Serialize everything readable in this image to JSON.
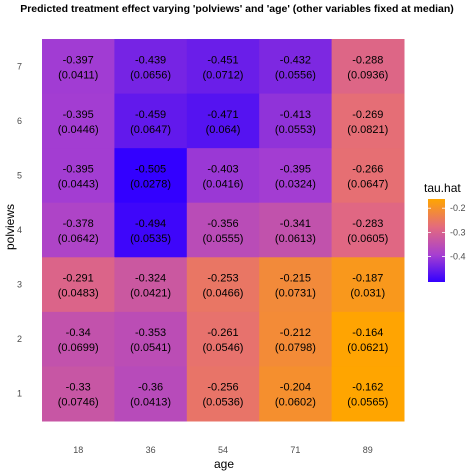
{
  "chart_data": {
    "type": "heatmap",
    "title": "Predicted treatment effect varying 'polviews' and 'age' (other variables fixed at median)",
    "xlabel": "age",
    "ylabel": "polviews",
    "x_categories": [
      "18",
      "36",
      "54",
      "71",
      "89"
    ],
    "y_categories": [
      "1",
      "2",
      "3",
      "4",
      "5",
      "6",
      "7"
    ],
    "cells": [
      {
        "x": "18",
        "y": "7",
        "value": -0.397,
        "se": "(0.0411)",
        "label": "-0.397"
      },
      {
        "x": "36",
        "y": "7",
        "value": -0.439,
        "se": "(0.0656)",
        "label": "-0.439"
      },
      {
        "x": "54",
        "y": "7",
        "value": -0.451,
        "se": "(0.0712)",
        "label": "-0.451"
      },
      {
        "x": "71",
        "y": "7",
        "value": -0.432,
        "se": "(0.0556)",
        "label": "-0.432"
      },
      {
        "x": "89",
        "y": "7",
        "value": -0.288,
        "se": "(0.0936)",
        "label": "-0.288"
      },
      {
        "x": "18",
        "y": "6",
        "value": -0.395,
        "se": "(0.0446)",
        "label": "-0.395"
      },
      {
        "x": "36",
        "y": "6",
        "value": -0.459,
        "se": "(0.0647)",
        "label": "-0.459"
      },
      {
        "x": "54",
        "y": "6",
        "value": -0.471,
        "se": "(0.064)",
        "label": "-0.471"
      },
      {
        "x": "71",
        "y": "6",
        "value": -0.413,
        "se": "(0.0553)",
        "label": "-0.413"
      },
      {
        "x": "89",
        "y": "6",
        "value": -0.269,
        "se": "(0.0821)",
        "label": "-0.269"
      },
      {
        "x": "18",
        "y": "5",
        "value": -0.395,
        "se": "(0.0443)",
        "label": "-0.395"
      },
      {
        "x": "36",
        "y": "5",
        "value": -0.505,
        "se": "(0.0278)",
        "label": "-0.505"
      },
      {
        "x": "54",
        "y": "5",
        "value": -0.403,
        "se": "(0.0416)",
        "label": "-0.403"
      },
      {
        "x": "71",
        "y": "5",
        "value": -0.395,
        "se": "(0.0324)",
        "label": "-0.395"
      },
      {
        "x": "89",
        "y": "5",
        "value": -0.266,
        "se": "(0.0647)",
        "label": "-0.266"
      },
      {
        "x": "18",
        "y": "4",
        "value": -0.378,
        "se": "(0.0642)",
        "label": "-0.378"
      },
      {
        "x": "36",
        "y": "4",
        "value": -0.494,
        "se": "(0.0535)",
        "label": "-0.494"
      },
      {
        "x": "54",
        "y": "4",
        "value": -0.356,
        "se": "(0.0555)",
        "label": "-0.356"
      },
      {
        "x": "71",
        "y": "4",
        "value": -0.341,
        "se": "(0.0613)",
        "label": "-0.341"
      },
      {
        "x": "89",
        "y": "4",
        "value": -0.283,
        "se": "(0.0605)",
        "label": "-0.283"
      },
      {
        "x": "18",
        "y": "3",
        "value": -0.291,
        "se": "(0.0483)",
        "label": "-0.291"
      },
      {
        "x": "36",
        "y": "3",
        "value": -0.324,
        "se": "(0.0421)",
        "label": "-0.324"
      },
      {
        "x": "54",
        "y": "3",
        "value": -0.253,
        "se": "(0.0466)",
        "label": "-0.253"
      },
      {
        "x": "71",
        "y": "3",
        "value": -0.215,
        "se": "(0.0731)",
        "label": "-0.215"
      },
      {
        "x": "89",
        "y": "3",
        "value": -0.187,
        "se": "(0.031)",
        "label": "-0.187"
      },
      {
        "x": "18",
        "y": "2",
        "value": -0.34,
        "se": "(0.0699)",
        "label": "-0.34"
      },
      {
        "x": "36",
        "y": "2",
        "value": -0.353,
        "se": "(0.0541)",
        "label": "-0.353"
      },
      {
        "x": "54",
        "y": "2",
        "value": -0.261,
        "se": "(0.0546)",
        "label": "-0.261"
      },
      {
        "x": "71",
        "y": "2",
        "value": -0.212,
        "se": "(0.0798)",
        "label": "-0.212"
      },
      {
        "x": "89",
        "y": "2",
        "value": -0.164,
        "se": "(0.0621)",
        "label": "-0.164"
      },
      {
        "x": "18",
        "y": "1",
        "value": -0.33,
        "se": "(0.0746)",
        "label": "-0.33"
      },
      {
        "x": "36",
        "y": "1",
        "value": -0.36,
        "se": "(0.0413)",
        "label": "-0.36"
      },
      {
        "x": "54",
        "y": "1",
        "value": -0.256,
        "se": "(0.0536)",
        "label": "-0.256"
      },
      {
        "x": "71",
        "y": "1",
        "value": -0.204,
        "se": "(0.0602)",
        "label": "-0.204"
      },
      {
        "x": "89",
        "y": "1",
        "value": -0.162,
        "se": "(0.0565)",
        "label": "-0.162"
      }
    ],
    "legend": {
      "title": "tau.hat",
      "position": "right",
      "range": [
        -0.505,
        -0.162
      ],
      "ticks": [
        -0.2,
        -0.3,
        -0.4
      ],
      "tick_labels": [
        "-0.2",
        "-0.3",
        "-0.4"
      ],
      "colors": [
        "#3300ff",
        "#a73fd0",
        "#e36a7e",
        "#ffa500"
      ]
    },
    "grid": true
  }
}
